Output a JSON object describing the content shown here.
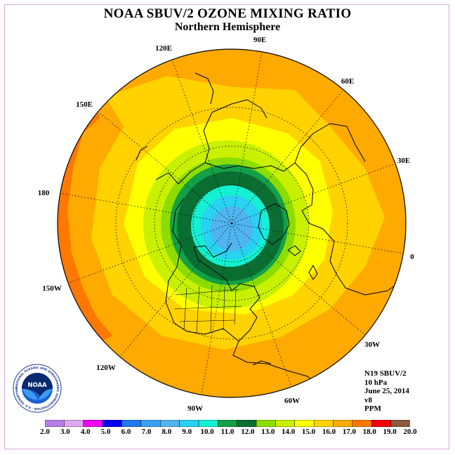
{
  "title": "NOAA SBUV/2 OZONE MIXING RATIO",
  "subtitle": "Northern Hemisphere",
  "longitude_labels": [
    "90E",
    "60E",
    "30E",
    "0",
    "30W",
    "60W",
    "90W",
    "120W",
    "150W",
    "180",
    "150E",
    "120E"
  ],
  "info": {
    "satellite": "N19 SBUV/2",
    "level": "10 hPa",
    "date": "June 25, 2014",
    "version": "v8",
    "units": "PPM"
  },
  "logo": {
    "text": "NOAA",
    "ring_text": "NATIONAL OCEANIC AND ATMOSPHERIC ADMINISTRATION · U.S. DEPARTMENT OF COMMERCE"
  },
  "colorbar": {
    "ticks": [
      "2.0",
      "3.0",
      "4.0",
      "5.0",
      "6.0",
      "7.0",
      "8.0",
      "9.0",
      "10.0",
      "11.0",
      "12.0",
      "13.0",
      "14.0",
      "15.0",
      "16.0",
      "17.0",
      "18.0",
      "19.0",
      "20.0"
    ],
    "colors": [
      "#b57ee8",
      "#e0a8f0",
      "#f000f0",
      "#0000f0",
      "#1e78f0",
      "#3ca0f0",
      "#50b4f0",
      "#28d2f0",
      "#14f0d2",
      "#14a046",
      "#0a6e32",
      "#8cdc00",
      "#c8f000",
      "#ffff00",
      "#ffd200",
      "#ffaa00",
      "#ff7800",
      "#f00000",
      "#8c5a3c"
    ]
  },
  "colors": {
    "outer": "#ffaa00",
    "orange_band": "#ff7800",
    "gold": "#ffd200",
    "yellow": "#ffff00",
    "yellow_green": "#c8f000",
    "lime": "#8cdc00",
    "dark_green": "#0a6e32",
    "green": "#14a046",
    "cyan": "#14f0d2",
    "light_blue": "#28d2f0",
    "blue": "#50b4f0"
  }
}
